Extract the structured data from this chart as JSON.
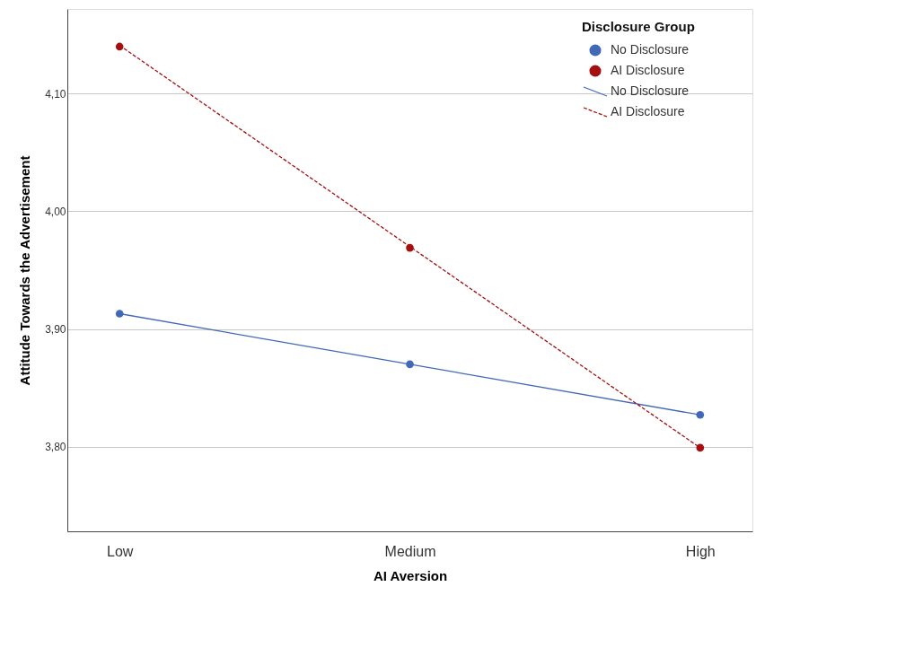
{
  "chart_data": {
    "type": "scatter",
    "xlabel": "AI Aversion",
    "ylabel": "Attitude Towards the Advertisement",
    "legend_title": "Disclosure Group",
    "categories": [
      "Low",
      "Medium",
      "High"
    ],
    "ylim": [
      3.728,
      4.172
    ],
    "yticks": [
      {
        "value": 3.8,
        "label": "3,80"
      },
      {
        "value": 3.9,
        "label": "3,90"
      },
      {
        "value": 4.0,
        "label": "4,00"
      },
      {
        "value": 4.1,
        "label": "4,10"
      }
    ],
    "grid": "y",
    "legend": "top right",
    "series": [
      {
        "name": "No Disclosure",
        "marker": "circle",
        "color": "#4169b8",
        "values": [
          3.913,
          3.87,
          3.827
        ]
      },
      {
        "name": "AI Disclosure",
        "marker": "circle",
        "color": "#a50f0f",
        "values": [
          4.14,
          3.969,
          3.799
        ]
      },
      {
        "name": "No Disclosure",
        "type": "line",
        "marker": "none",
        "line_style": "solid",
        "color": "#4169b8",
        "values": [
          3.913,
          3.87,
          3.827
        ]
      },
      {
        "name": "AI Disclosure",
        "type": "line",
        "marker": "none",
        "line_style": "dashed",
        "color": "#a50f0f",
        "values": [
          4.141,
          3.97,
          3.799
        ]
      }
    ]
  }
}
